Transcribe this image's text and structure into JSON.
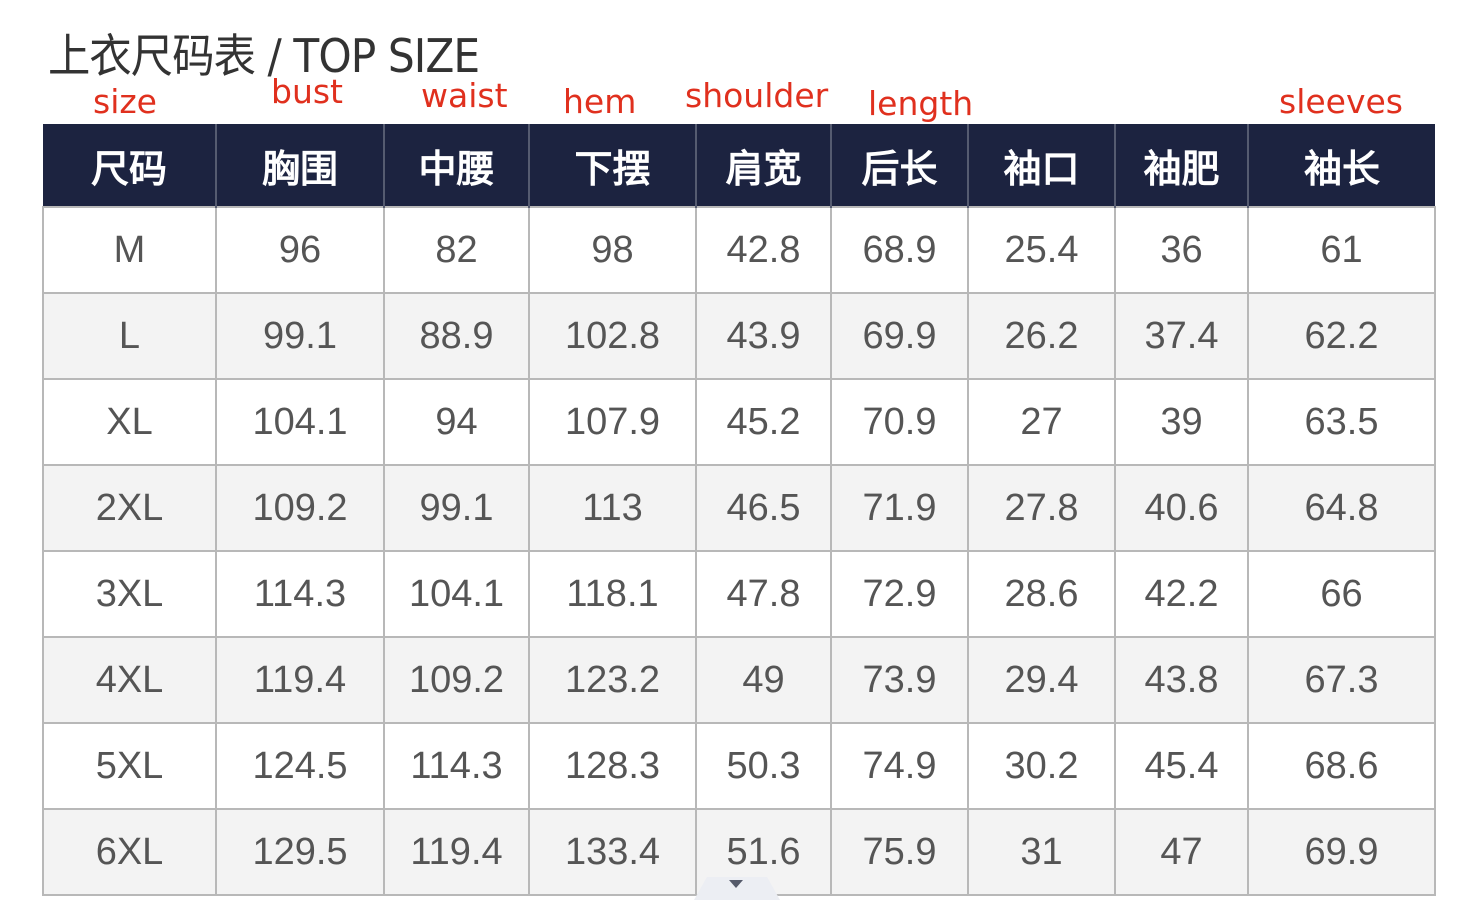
{
  "title": "上衣尺码表 / TOP SIZE",
  "english_labels": {
    "size": "size",
    "bust": "bust",
    "waist": "waist",
    "hem": "hem",
    "shoulder": "shoulder",
    "length": "length",
    "sleeves": "sleeves"
  },
  "label_color": "#e0301e",
  "header_color": "#1c2340",
  "headers": [
    "尺码",
    "胸围",
    "中腰",
    "下摆",
    "肩宽",
    "后长",
    "袖口",
    "袖肥",
    "袖长"
  ],
  "rows": [
    [
      "M",
      "96",
      "82",
      "98",
      "42.8",
      "68.9",
      "25.4",
      "36",
      "61"
    ],
    [
      "L",
      "99.1",
      "88.9",
      "102.8",
      "43.9",
      "69.9",
      "26.2",
      "37.4",
      "62.2"
    ],
    [
      "XL",
      "104.1",
      "94",
      "107.9",
      "45.2",
      "70.9",
      "27",
      "39",
      "63.5"
    ],
    [
      "2XL",
      "109.2",
      "99.1",
      "113",
      "46.5",
      "71.9",
      "27.8",
      "40.6",
      "64.8"
    ],
    [
      "3XL",
      "114.3",
      "104.1",
      "118.1",
      "47.8",
      "72.9",
      "28.6",
      "42.2",
      "66"
    ],
    [
      "4XL",
      "119.4",
      "109.2",
      "123.2",
      "49",
      "73.9",
      "29.4",
      "43.8",
      "67.3"
    ],
    [
      "5XL",
      "124.5",
      "114.3",
      "128.3",
      "50.3",
      "74.9",
      "30.2",
      "45.4",
      "68.6"
    ],
    [
      "6XL",
      "129.5",
      "119.4",
      "133.4",
      "51.6",
      "75.9",
      "31",
      "47",
      "69.9"
    ]
  ],
  "expand_icon": "caret-down-icon"
}
